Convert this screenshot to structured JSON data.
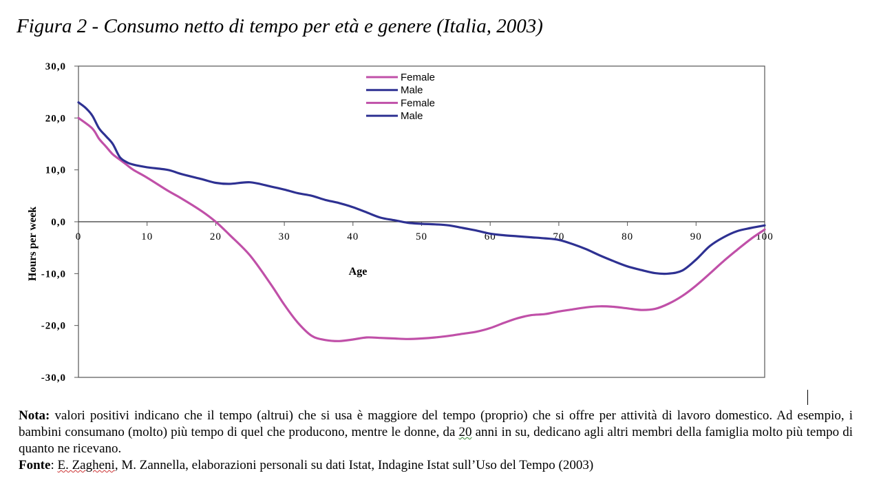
{
  "title": "Figura 2 - Consumo netto di tempo per età e genere (Italia, 2003)",
  "chart_data": {
    "type": "line",
    "xlabel": "Age",
    "ylabel": "Hours per week",
    "xlim": [
      0,
      100
    ],
    "ylim": [
      -30,
      30
    ],
    "xticks": [
      "0",
      "10",
      "20",
      "30",
      "40",
      "50",
      "60",
      "70",
      "80",
      "90",
      "100"
    ],
    "yticks": [
      "30,0",
      "20,0",
      "10,0",
      "0,0",
      "-10,0",
      "-20,0",
      "-30,0"
    ],
    "legend_position": "top-center",
    "legend": [
      {
        "label": "Female",
        "color": "#c050a8"
      },
      {
        "label": "Male",
        "color": "#2e3192"
      },
      {
        "label": "Female",
        "color": "#c050a8"
      },
      {
        "label": "Male",
        "color": "#2e3192"
      }
    ],
    "series": [
      {
        "name": "Female",
        "color": "#c050a8",
        "x": [
          0,
          2,
          3,
          4,
          5,
          6,
          7,
          8,
          10,
          13,
          15,
          18,
          20,
          22,
          25,
          28,
          30,
          32,
          34,
          36,
          38,
          40,
          42,
          44,
          46,
          48,
          50,
          52,
          54,
          56,
          58,
          60,
          62,
          64,
          66,
          68,
          70,
          72,
          74,
          76,
          78,
          80,
          82,
          84,
          86,
          88,
          90,
          92,
          94,
          96,
          98,
          100
        ],
        "y": [
          20.0,
          18.0,
          16.0,
          14.5,
          13.0,
          12.0,
          11.0,
          10.0,
          8.5,
          6.0,
          4.5,
          2.0,
          0.0,
          -2.5,
          -6.5,
          -12.0,
          -16.0,
          -19.5,
          -22.0,
          -22.8,
          -23.0,
          -22.7,
          -22.3,
          -22.4,
          -22.5,
          -22.6,
          -22.5,
          -22.3,
          -22.0,
          -21.6,
          -21.2,
          -20.5,
          -19.5,
          -18.6,
          -18.0,
          -17.8,
          -17.3,
          -16.9,
          -16.5,
          -16.3,
          -16.4,
          -16.7,
          -17.0,
          -16.8,
          -15.8,
          -14.3,
          -12.3,
          -10.0,
          -7.6,
          -5.4,
          -3.3,
          -1.5
        ]
      },
      {
        "name": "Male",
        "color": "#2e3192",
        "x": [
          0,
          1,
          2,
          3,
          4,
          5,
          6,
          7,
          8,
          10,
          13,
          15,
          18,
          20,
          22,
          25,
          28,
          30,
          32,
          34,
          36,
          38,
          40,
          42,
          44,
          46,
          48,
          50,
          52,
          54,
          56,
          58,
          60,
          62,
          64,
          66,
          68,
          70,
          72,
          74,
          76,
          78,
          80,
          82,
          84,
          86,
          88,
          90,
          92,
          94,
          96,
          98,
          100
        ],
        "y": [
          23.0,
          22.0,
          20.5,
          18.0,
          16.5,
          15.0,
          12.5,
          11.5,
          11.0,
          10.5,
          10.0,
          9.2,
          8.2,
          7.5,
          7.3,
          7.6,
          6.8,
          6.2,
          5.5,
          5.0,
          4.2,
          3.6,
          2.8,
          1.8,
          0.8,
          0.3,
          -0.2,
          -0.4,
          -0.5,
          -0.7,
          -1.2,
          -1.7,
          -2.3,
          -2.6,
          -2.8,
          -3.0,
          -3.2,
          -3.5,
          -4.3,
          -5.3,
          -6.5,
          -7.6,
          -8.6,
          -9.3,
          -9.9,
          -10.0,
          -9.4,
          -7.3,
          -4.7,
          -3.0,
          -1.8,
          -1.2,
          -0.7
        ]
      }
    ]
  },
  "notes": {
    "nota_label": "Nota:",
    "nota_part1": " valori positivi indicano che il tempo (altrui) che si usa è maggiore del tempo (proprio) che si offre per attività di lavoro domestico. Ad esempio, i bambini consumano (molto) più tempo di quel che producono, mentre le donne, da ",
    "nota_underlined": "20",
    "nota_part2": " anni in su, dedicano agli altri membri della famiglia molto più tempo di quanto ne ricevano.",
    "fonte_label": "Fonte",
    "fonte_colon": ": ",
    "fonte_author1": "E. Zagheni",
    "fonte_rest": ", M. Zannella, elaborazioni personali su dati Istat, Indagine Istat sull’Uso del Tempo (2003)"
  }
}
